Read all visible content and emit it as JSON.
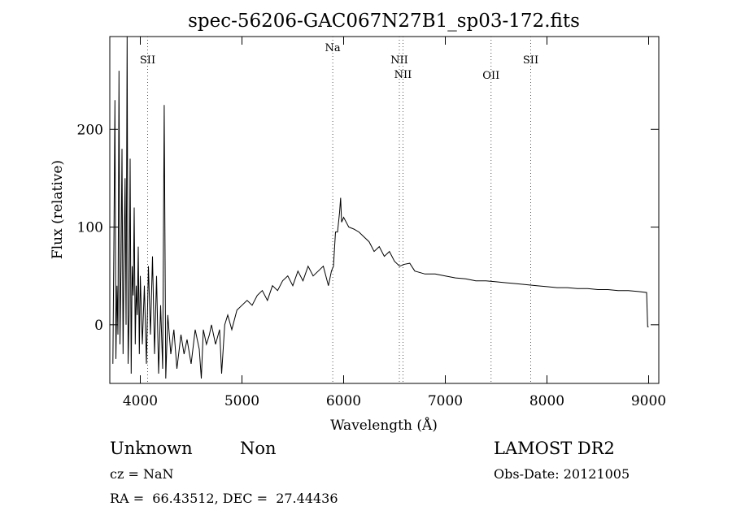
{
  "chart_data": {
    "type": "line",
    "title": "spec-56206-GAC067N27B1_sp03-172.fits",
    "xlabel": "Wavelength (Å)",
    "ylabel": "Flux (relative)",
    "xlim": [
      3700,
      9100
    ],
    "ylim": [
      -60,
      295
    ],
    "x_ticks": [
      4000,
      5000,
      6000,
      7000,
      8000,
      9000
    ],
    "y_ticks": [
      0,
      100,
      200
    ],
    "grid": false,
    "line_color": "#000000",
    "line_markers": [
      {
        "label": "SII",
        "x": 4072
      },
      {
        "label": "Na",
        "x": 5893
      },
      {
        "label": "NII",
        "x": 6548
      },
      {
        "label": "NII",
        "x": 6584
      },
      {
        "label": "OII",
        "x": 7450
      },
      {
        "label": "SII",
        "x": 7840
      }
    ],
    "series": [
      {
        "x": [
          3730,
          3740,
          3750,
          3760,
          3770,
          3780,
          3790,
          3800,
          3810,
          3820,
          3830,
          3840,
          3850,
          3860,
          3870,
          3880,
          3890,
          3900,
          3910,
          3920,
          3930,
          3940,
          3950,
          3960,
          3970,
          3980,
          3990,
          4000,
          4020,
          4040,
          4060,
          4080,
          4100,
          4120,
          4140,
          4160,
          4180,
          4200,
          4220,
          4235,
          4250,
          4270,
          4300,
          4330,
          4360,
          4400,
          4430,
          4460,
          4500,
          4540,
          4580,
          4600,
          4620,
          4650,
          4680,
          4700,
          4740,
          4780,
          4800,
          4830,
          4860,
          4900,
          4950,
          5000,
          5050,
          5100,
          5150,
          5200,
          5250,
          5300,
          5350,
          5400,
          5450,
          5500,
          5550,
          5600,
          5650,
          5700,
          5750,
          5800,
          5850,
          5880,
          5900,
          5920,
          5940,
          5960,
          5970,
          5980,
          6000,
          6050,
          6100,
          6150,
          6200,
          6250,
          6300,
          6350,
          6400,
          6450,
          6500,
          6550,
          6600,
          6650,
          6700,
          6800,
          6900,
          7000,
          7100,
          7200,
          7300,
          7400,
          7500,
          7600,
          7700,
          7800,
          7900,
          8000,
          8100,
          8200,
          8300,
          8400,
          8500,
          8600,
          8700,
          8800,
          8900,
          8980,
          8990,
          9000
        ],
        "y": [
          -40,
          80,
          230,
          -35,
          40,
          -10,
          260,
          -20,
          60,
          180,
          -30,
          70,
          150,
          0,
          295,
          -40,
          10,
          170,
          -50,
          60,
          30,
          120,
          -20,
          40,
          10,
          80,
          -30,
          50,
          -20,
          40,
          -40,
          60,
          -10,
          70,
          -30,
          50,
          -50,
          20,
          -45,
          225,
          -55,
          10,
          -30,
          -5,
          -45,
          -10,
          -30,
          -15,
          -40,
          -5,
          -25,
          -55,
          -5,
          -20,
          -10,
          0,
          -20,
          -5,
          -50,
          0,
          10,
          -5,
          15,
          20,
          25,
          20,
          30,
          35,
          25,
          40,
          35,
          45,
          50,
          40,
          55,
          45,
          60,
          50,
          55,
          60,
          40,
          55,
          60,
          95,
          95,
          115,
          130,
          105,
          110,
          100,
          98,
          95,
          90,
          85,
          75,
          80,
          70,
          75,
          65,
          60,
          62,
          63,
          55,
          52,
          52,
          50,
          48,
          47,
          45,
          45,
          44,
          43,
          42,
          41,
          40,
          39,
          38,
          38,
          37,
          37,
          36,
          36,
          35,
          35,
          34,
          33,
          -2,
          -2
        ]
      }
    ]
  },
  "info": {
    "object_class": "Unknown",
    "subclass": "Non",
    "survey": "LAMOST DR2",
    "cz": "cz = NaN",
    "obs_date": "Obs-Date: 20121005",
    "coords": "RA =  66.43512, DEC =  27.44436"
  }
}
